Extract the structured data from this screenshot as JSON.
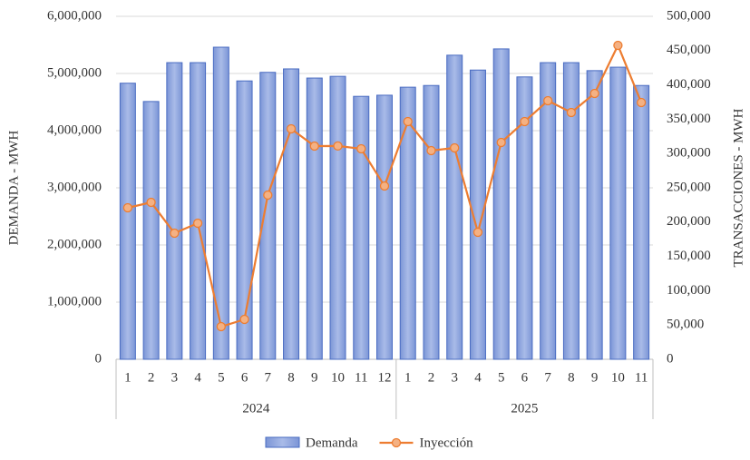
{
  "chart_data": {
    "type": "bar-line",
    "categories": [
      "1",
      "2",
      "3",
      "4",
      "5",
      "6",
      "7",
      "8",
      "9",
      "10",
      "11",
      "12",
      "1",
      "2",
      "3",
      "4",
      "5",
      "6",
      "7",
      "8",
      "9",
      "10",
      "11"
    ],
    "category_groups": [
      "2024",
      "2025"
    ],
    "y_label": "DEMANDA - MWH",
    "y2_label": "TRANSACCIONES - MWH",
    "series": [
      {
        "name": "Demanda",
        "type": "bar",
        "color": "#8fa7de",
        "values": [
          4830000,
          4510000,
          5190000,
          5190000,
          5460000,
          4870000,
          5020000,
          5080000,
          4920000,
          4950000,
          4600000,
          4620000,
          4760000,
          4790000,
          5320000,
          5060000,
          5430000,
          4940000,
          5190000,
          5190000,
          5050000,
          5110000,
          4790000
        ]
      },
      {
        "name": "Inyección",
        "type": "line",
        "axis": "y2",
        "color": "#ed7d31",
        "values": [
          220900,
          228800,
          183900,
          198400,
          47600,
          58200,
          239400,
          336000,
          310800,
          311000,
          306900,
          252600,
          346600,
          304200,
          308200,
          185200,
          316100,
          346600,
          377000,
          359800,
          387600,
          457700,
          374300
        ]
      }
    ],
    "ylim": [
      0,
      6000000
    ],
    "yticks": [
      0,
      {
        "value": 1000000,
        "label": "1,000,000"
      },
      {
        "value": 2000000,
        "label": "2,000,000"
      },
      {
        "value": 3000000,
        "label": "3,000,000"
      },
      {
        "value": 4000000,
        "label": "4,000,000"
      },
      {
        "value": 5000000,
        "label": "5,000,000"
      },
      {
        "value": 6000000,
        "label": "6,000,000"
      }
    ],
    "y2lim": [
      0,
      500000
    ],
    "y2ticks": [
      0,
      {
        "value": 50000,
        "label": "50,000"
      },
      {
        "value": 100000,
        "label": "100,000"
      },
      {
        "value": 150000,
        "label": "150,000"
      },
      {
        "value": 200000,
        "label": "200,000"
      },
      {
        "value": 250000,
        "label": "250,000"
      },
      {
        "value": 300000,
        "label": "300,000"
      },
      {
        "value": 350000,
        "label": "350,000"
      },
      {
        "value": 400000,
        "label": "400,000"
      },
      {
        "value": 450000,
        "label": "450,000"
      },
      {
        "value": 500000,
        "label": "500,000"
      }
    ],
    "grid": true,
    "legend": "bottom"
  }
}
